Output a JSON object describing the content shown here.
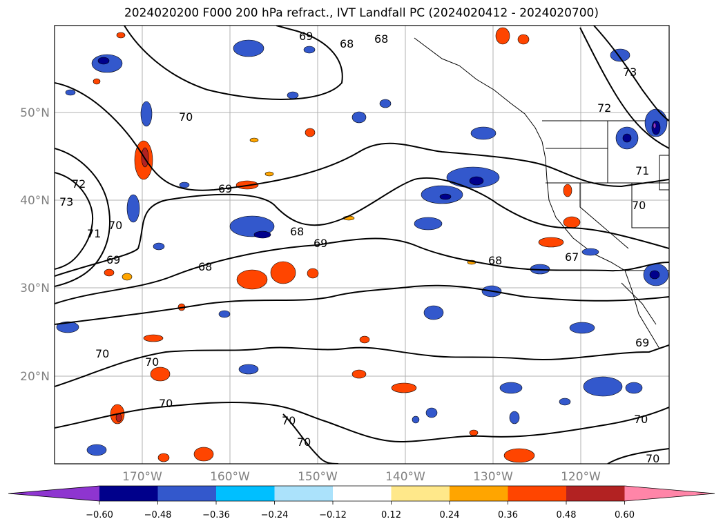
{
  "title": "2024020200 F000 200 hPa refract., IVT Landfall PC (2024020412 - 2024020700)",
  "map": {
    "lat_labels": [
      "50°N",
      "40°N",
      "30°N",
      "20°N"
    ],
    "lon_labels": [
      "170°W",
      "160°W",
      "150°W",
      "140°W",
      "130°W",
      "120°W"
    ],
    "contour_labels": [
      "69",
      "68",
      "68",
      "70",
      "69",
      "72",
      "73",
      "70",
      "71",
      "69",
      "68",
      "69",
      "68",
      "67",
      "68",
      "72",
      "71",
      "70",
      "73",
      "70",
      "70",
      "70",
      "70",
      "70",
      "69",
      "70",
      "70"
    ],
    "label_color": "#808080",
    "contour_color": "#000000"
  },
  "colorbar": {
    "ticks": [
      "−0.60",
      "−0.48",
      "−0.36",
      "−0.24",
      "−0.12",
      "0.12",
      "0.24",
      "0.36",
      "0.48",
      "0.60"
    ],
    "colors": [
      "#8e35d0",
      "#00008b",
      "#3358cc",
      "#00bfff",
      "#abe2fb",
      "#ffffff",
      "#ffe88a",
      "#ffa500",
      "#ff4500",
      "#b22222",
      "#ff85a8"
    ]
  }
}
